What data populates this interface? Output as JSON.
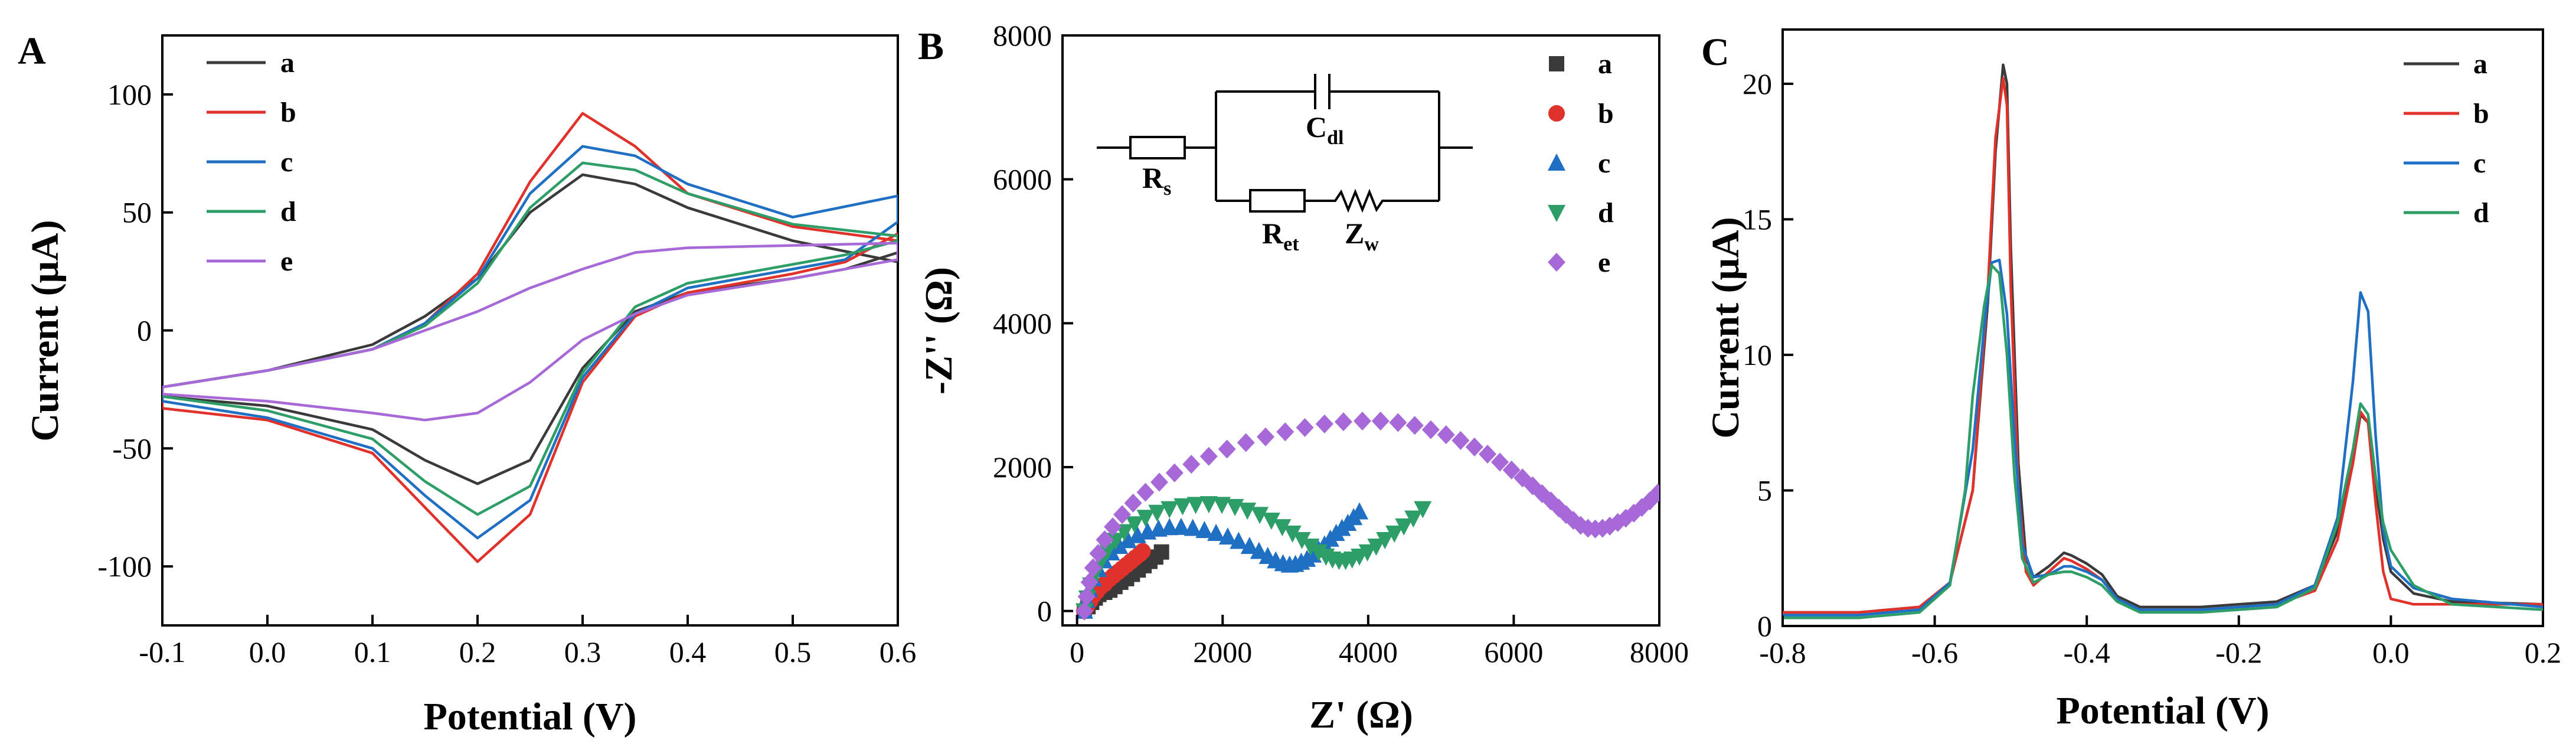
{
  "panels": {
    "A": {
      "letter": "A"
    },
    "B": {
      "letter": "B"
    },
    "C": {
      "letter": "C"
    }
  },
  "circuit": {
    "rs_main": "R",
    "rs_sub": "s",
    "cdl_main": "C",
    "cdl_sub": "dl",
    "ret_main": "R",
    "ret_sub": "et",
    "zw_main": "Z",
    "zw_sub": "w"
  },
  "chart_data": [
    {
      "id": "A",
      "type": "line",
      "xlabel": "Potential (V)",
      "ylabel": "Current (μA)",
      "xlim": [
        -0.1,
        0.6
      ],
      "ylim": [
        -125,
        125
      ],
      "xticks": [
        -0.1,
        0.0,
        0.1,
        0.2,
        0.3,
        0.4,
        0.5,
        0.6
      ],
      "xtick_labels": [
        "-0.1",
        "0.0",
        "0.1",
        "0.2",
        "0.3",
        "0.4",
        "0.5",
        "0.6"
      ],
      "yticks": [
        -100,
        -50,
        0,
        50,
        100
      ],
      "ytick_labels": [
        "-100",
        "-50",
        "0",
        "50",
        "100"
      ],
      "legend_position": "top-left",
      "series": [
        {
          "name": "a",
          "color": "#3a3a3a",
          "x": [
            -0.1,
            0.0,
            0.1,
            0.15,
            0.2,
            0.25,
            0.3,
            0.35,
            0.4,
            0.5,
            0.6,
            0.6,
            0.55,
            0.5,
            0.4,
            0.35,
            0.3,
            0.25,
            0.2,
            0.15,
            0.1,
            0.0,
            -0.1
          ],
          "y": [
            -24,
            -17,
            -6,
            6,
            22,
            50,
            66,
            62,
            52,
            38,
            29,
            33,
            26,
            22,
            16,
            8,
            -16,
            -55,
            -65,
            -55,
            -42,
            -32,
            -28
          ]
        },
        {
          "name": "b",
          "color": "#e0312a",
          "x": [
            -0.1,
            0.0,
            0.1,
            0.15,
            0.2,
            0.25,
            0.3,
            0.35,
            0.4,
            0.5,
            0.6,
            0.6,
            0.55,
            0.5,
            0.4,
            0.35,
            0.3,
            0.25,
            0.2,
            0.15,
            0.1,
            0.0,
            -0.1
          ],
          "y": [
            -24,
            -17,
            -8,
            3,
            24,
            63,
            92,
            78,
            58,
            44,
            38,
            41,
            29,
            24,
            16,
            6,
            -22,
            -78,
            -98,
            -75,
            -52,
            -38,
            -33
          ]
        },
        {
          "name": "c",
          "color": "#1f6fc4",
          "x": [
            -0.1,
            0.0,
            0.1,
            0.15,
            0.2,
            0.25,
            0.3,
            0.35,
            0.4,
            0.5,
            0.6,
            0.6,
            0.55,
            0.5,
            0.4,
            0.35,
            0.3,
            0.25,
            0.2,
            0.15,
            0.1,
            0.0,
            -0.1
          ],
          "y": [
            -24,
            -17,
            -8,
            3,
            22,
            58,
            78,
            74,
            62,
            48,
            57,
            46,
            30,
            26,
            18,
            7,
            -20,
            -72,
            -88,
            -70,
            -50,
            -37,
            -30
          ]
        },
        {
          "name": "d",
          "color": "#2e9e68",
          "x": [
            -0.1,
            0.0,
            0.1,
            0.15,
            0.2,
            0.25,
            0.3,
            0.35,
            0.4,
            0.5,
            0.6,
            0.6,
            0.55,
            0.5,
            0.4,
            0.35,
            0.3,
            0.25,
            0.2,
            0.15,
            0.1,
            0.0,
            -0.1
          ],
          "y": [
            -24,
            -17,
            -8,
            2,
            20,
            52,
            71,
            68,
            58,
            45,
            40,
            38,
            32,
            28,
            20,
            10,
            -18,
            -66,
            -78,
            -64,
            -46,
            -34,
            -28
          ]
        },
        {
          "name": "e",
          "color": "#a769d8",
          "x": [
            -0.1,
            0.0,
            0.1,
            0.2,
            0.25,
            0.3,
            0.35,
            0.4,
            0.5,
            0.6,
            0.6,
            0.5,
            0.4,
            0.35,
            0.3,
            0.25,
            0.2,
            0.15,
            0.1,
            0.0,
            -0.1
          ],
          "y": [
            -24,
            -17,
            -8,
            8,
            18,
            26,
            33,
            35,
            36,
            37,
            30,
            22,
            15,
            7,
            -4,
            -22,
            -35,
            -38,
            -35,
            -30,
            -27
          ]
        }
      ]
    },
    {
      "id": "B",
      "type": "scatter",
      "xlabel": "Z' (Ω)",
      "ylabel": "-Z'' (Ω)",
      "xlim": [
        -200,
        8000
      ],
      "ylim": [
        -200,
        8000
      ],
      "xticks": [
        0,
        2000,
        4000,
        6000,
        8000
      ],
      "xtick_labels": [
        "0",
        "2000",
        "4000",
        "6000",
        "8000"
      ],
      "yticks": [
        0,
        2000,
        4000,
        6000,
        8000
      ],
      "ytick_labels": [
        "0",
        "2000",
        "4000",
        "6000",
        "8000"
      ],
      "legend_position": "top-right",
      "series": [
        {
          "name": "a",
          "color": "#3a3a3a",
          "marker": "square",
          "x": [
            100,
            150,
            200,
            250,
            300,
            380,
            450,
            520,
            600,
            680,
            760,
            840,
            920,
            1000,
            1080,
            1160
          ],
          "y": [
            0,
            60,
            120,
            180,
            230,
            260,
            290,
            340,
            400,
            450,
            510,
            570,
            630,
            690,
            750,
            820
          ]
        },
        {
          "name": "b",
          "color": "#e0312a",
          "marker": "circle",
          "x": [
            100,
            140,
            180,
            220,
            270,
            320,
            380,
            440,
            500,
            560,
            620,
            680,
            740,
            800,
            860,
            900
          ],
          "y": [
            0,
            70,
            140,
            210,
            270,
            330,
            380,
            440,
            490,
            540,
            590,
            640,
            690,
            740,
            790,
            830
          ]
        },
        {
          "name": "c",
          "color": "#1f6fc4",
          "marker": "triangle-up",
          "x": [
            100,
            130,
            170,
            220,
            290,
            370,
            470,
            580,
            700,
            830,
            970,
            1120,
            1270,
            1430,
            1590,
            1750,
            1910,
            2070,
            2220,
            2370,
            2500,
            2620,
            2730,
            2830,
            2920,
            3000,
            3080,
            3160,
            3240,
            3320,
            3400,
            3480,
            3560,
            3640,
            3720,
            3800,
            3880
          ],
          "y": [
            0,
            150,
            300,
            450,
            580,
            700,
            810,
            900,
            980,
            1050,
            1100,
            1140,
            1160,
            1165,
            1150,
            1120,
            1080,
            1030,
            970,
            900,
            830,
            760,
            700,
            660,
            640,
            650,
            680,
            720,
            780,
            850,
            920,
            1000,
            1080,
            1150,
            1220,
            1300,
            1380
          ]
        },
        {
          "name": "d",
          "color": "#2e9e68",
          "marker": "triangle-down",
          "x": [
            100,
            140,
            190,
            250,
            330,
            420,
            530,
            650,
            790,
            940,
            1100,
            1270,
            1450,
            1630,
            1810,
            1990,
            2170,
            2340,
            2510,
            2670,
            2820,
            2960,
            3090,
            3210,
            3320,
            3420,
            3510,
            3600,
            3690,
            3780,
            3880,
            3990,
            4110,
            4230,
            4360,
            4490,
            4620,
            4750
          ],
          "y": [
            0,
            180,
            360,
            530,
            690,
            840,
            980,
            1100,
            1210,
            1300,
            1370,
            1420,
            1460,
            1480,
            1490,
            1480,
            1450,
            1400,
            1340,
            1260,
            1170,
            1080,
            990,
            900,
            820,
            760,
            720,
            700,
            700,
            720,
            760,
            820,
            900,
            990,
            1080,
            1180,
            1290,
            1420
          ]
        },
        {
          "name": "e",
          "color": "#a769d8",
          "marker": "diamond",
          "x": [
            100,
            130,
            170,
            220,
            290,
            380,
            490,
            620,
            770,
            940,
            1130,
            1340,
            1570,
            1810,
            2060,
            2320,
            2590,
            2860,
            3130,
            3400,
            3660,
            3920,
            4170,
            4410,
            4640,
            4860,
            5070,
            5270,
            5460,
            5640,
            5810,
            5970,
            6120,
            6260,
            6390,
            6510,
            6620,
            6720,
            6820,
            6920,
            7020,
            7120,
            7220,
            7320,
            7430,
            7540,
            7650,
            7760,
            7870,
            7980
          ],
          "y": [
            0,
            200,
            400,
            600,
            800,
            990,
            1170,
            1340,
            1500,
            1650,
            1790,
            1920,
            2040,
            2150,
            2250,
            2340,
            2420,
            2490,
            2550,
            2600,
            2630,
            2640,
            2640,
            2620,
            2580,
            2520,
            2450,
            2370,
            2280,
            2180,
            2070,
            1960,
            1850,
            1740,
            1630,
            1530,
            1430,
            1340,
            1260,
            1190,
            1150,
            1140,
            1150,
            1180,
            1230,
            1290,
            1360,
            1440,
            1530,
            1640
          ]
        }
      ]
    },
    {
      "id": "C",
      "type": "line",
      "xlabel": "Potential (V)",
      "ylabel": "Current (μA)",
      "xlim": [
        -0.8,
        0.2
      ],
      "ylim": [
        0,
        22
      ],
      "xticks": [
        -0.8,
        -0.6,
        -0.4,
        -0.2,
        0.0,
        0.2
      ],
      "xtick_labels": [
        "-0.8",
        "-0.6",
        "-0.4",
        "-0.2",
        "0.0",
        "0.2"
      ],
      "yticks": [
        0,
        5,
        10,
        15,
        20
      ],
      "ytick_labels": [
        "0",
        "5",
        "10",
        "15",
        "20"
      ],
      "legend_position": "top-right",
      "series": [
        {
          "name": "a",
          "color": "#3a3a3a",
          "x": [
            -0.8,
            -0.7,
            -0.62,
            -0.58,
            -0.55,
            -0.53,
            -0.52,
            -0.51,
            -0.505,
            -0.5,
            -0.49,
            -0.48,
            -0.47,
            -0.45,
            -0.43,
            -0.42,
            -0.4,
            -0.38,
            -0.36,
            -0.33,
            -0.25,
            -0.15,
            -0.1,
            -0.07,
            -0.05,
            -0.04,
            -0.03,
            -0.02,
            -0.01,
            0.0,
            0.03,
            0.08,
            0.2
          ],
          "y": [
            0.5,
            0.5,
            0.7,
            1.6,
            5.0,
            12.0,
            17.5,
            20.7,
            20.0,
            14.0,
            6.0,
            2.5,
            1.8,
            2.2,
            2.7,
            2.6,
            2.3,
            1.9,
            1.1,
            0.7,
            0.7,
            0.9,
            1.5,
            3.5,
            6.0,
            7.8,
            7.5,
            5.2,
            3.2,
            2.0,
            1.2,
            0.9,
            0.8
          ]
        },
        {
          "name": "b",
          "color": "#e0312a",
          "x": [
            -0.8,
            -0.7,
            -0.62,
            -0.58,
            -0.55,
            -0.53,
            -0.52,
            -0.51,
            -0.505,
            -0.5,
            -0.49,
            -0.48,
            -0.47,
            -0.45,
            -0.43,
            -0.42,
            -0.4,
            -0.38,
            -0.36,
            -0.33,
            -0.25,
            -0.15,
            -0.1,
            -0.07,
            -0.05,
            -0.04,
            -0.03,
            -0.02,
            -0.01,
            0.0,
            0.03,
            0.08,
            0.2
          ],
          "y": [
            0.5,
            0.5,
            0.7,
            1.6,
            5.0,
            12.5,
            18.0,
            20.2,
            19.2,
            12.5,
            5.0,
            2.0,
            1.5,
            2.0,
            2.5,
            2.4,
            2.1,
            1.7,
            1.0,
            0.6,
            0.6,
            0.8,
            1.3,
            3.2,
            6.0,
            7.9,
            7.5,
            4.5,
            2.0,
            1.0,
            0.8,
            0.8,
            0.8
          ]
        },
        {
          "name": "c",
          "color": "#1f6fc4",
          "x": [
            -0.8,
            -0.7,
            -0.62,
            -0.58,
            -0.55,
            -0.535,
            -0.525,
            -0.515,
            -0.505,
            -0.495,
            -0.485,
            -0.47,
            -0.45,
            -0.43,
            -0.42,
            -0.4,
            -0.38,
            -0.36,
            -0.33,
            -0.25,
            -0.15,
            -0.1,
            -0.07,
            -0.05,
            -0.04,
            -0.03,
            -0.02,
            -0.01,
            0.0,
            0.03,
            0.08,
            0.2
          ],
          "y": [
            0.4,
            0.4,
            0.6,
            1.6,
            6.5,
            11.0,
            13.4,
            13.5,
            11.5,
            7.0,
            3.0,
            1.8,
            1.9,
            2.2,
            2.2,
            2.0,
            1.7,
            1.0,
            0.6,
            0.6,
            0.8,
            1.5,
            4.0,
            9.0,
            12.3,
            11.6,
            7.0,
            3.5,
            2.2,
            1.4,
            1.0,
            0.7
          ]
        },
        {
          "name": "d",
          "color": "#2e9e68",
          "x": [
            -0.8,
            -0.7,
            -0.62,
            -0.58,
            -0.56,
            -0.55,
            -0.535,
            -0.525,
            -0.515,
            -0.505,
            -0.495,
            -0.485,
            -0.47,
            -0.45,
            -0.43,
            -0.42,
            -0.4,
            -0.38,
            -0.36,
            -0.33,
            -0.25,
            -0.15,
            -0.1,
            -0.07,
            -0.05,
            -0.04,
            -0.03,
            -0.02,
            -0.01,
            0.0,
            0.03,
            0.08,
            0.2
          ],
          "y": [
            0.3,
            0.3,
            0.5,
            1.5,
            5.0,
            8.5,
            11.8,
            13.3,
            13.0,
            10.0,
            5.5,
            2.5,
            1.6,
            1.9,
            2.0,
            2.0,
            1.8,
            1.5,
            0.9,
            0.5,
            0.5,
            0.7,
            1.4,
            3.8,
            6.5,
            8.2,
            7.8,
            5.5,
            3.8,
            2.8,
            1.5,
            0.8,
            0.6
          ]
        }
      ]
    }
  ]
}
